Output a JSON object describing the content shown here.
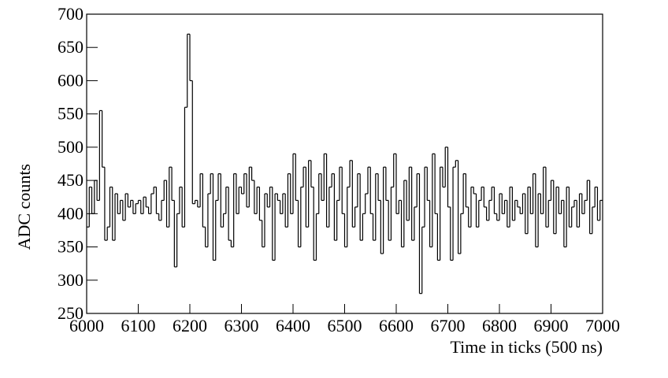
{
  "chart_data": {
    "type": "line",
    "drawstyle": "steps",
    "color": "#000000",
    "xlabel": "Time in ticks (500 ns)",
    "ylabel": "ADC counts",
    "xlim": [
      6000,
      7000
    ],
    "ylim": [
      250,
      700
    ],
    "xticks": [
      6000,
      6100,
      6200,
      6300,
      6400,
      6500,
      6600,
      6700,
      6800,
      6900,
      7000
    ],
    "yticks": [
      250,
      300,
      350,
      400,
      450,
      500,
      550,
      600,
      650,
      700
    ],
    "x": [
      6000,
      6005,
      6010,
      6015,
      6020,
      6025,
      6030,
      6035,
      6040,
      6045,
      6050,
      6055,
      6060,
      6065,
      6070,
      6075,
      6080,
      6085,
      6090,
      6095,
      6100,
      6105,
      6110,
      6115,
      6120,
      6125,
      6130,
      6135,
      6140,
      6145,
      6150,
      6155,
      6160,
      6165,
      6170,
      6175,
      6180,
      6185,
      6190,
      6195,
      6200,
      6205,
      6210,
      6215,
      6220,
      6225,
      6230,
      6235,
      6240,
      6245,
      6250,
      6255,
      6260,
      6265,
      6270,
      6275,
      6280,
      6285,
      6290,
      6295,
      6300,
      6305,
      6310,
      6315,
      6320,
      6325,
      6330,
      6335,
      6340,
      6345,
      6350,
      6355,
      6360,
      6365,
      6370,
      6375,
      6380,
      6385,
      6390,
      6395,
      6400,
      6405,
      6410,
      6415,
      6420,
      6425,
      6430,
      6435,
      6440,
      6445,
      6450,
      6455,
      6460,
      6465,
      6470,
      6475,
      6480,
      6485,
      6490,
      6495,
      6500,
      6505,
      6510,
      6515,
      6520,
      6525,
      6530,
      6535,
      6540,
      6545,
      6550,
      6555,
      6560,
      6565,
      6570,
      6575,
      6580,
      6585,
      6590,
      6595,
      6600,
      6605,
      6610,
      6615,
      6620,
      6625,
      6630,
      6635,
      6640,
      6645,
      6650,
      6655,
      6660,
      6665,
      6670,
      6675,
      6680,
      6685,
      6690,
      6695,
      6700,
      6705,
      6710,
      6715,
      6720,
      6725,
      6730,
      6735,
      6740,
      6745,
      6750,
      6755,
      6760,
      6765,
      6770,
      6775,
      6780,
      6785,
      6790,
      6795,
      6800,
      6805,
      6810,
      6815,
      6820,
      6825,
      6830,
      6835,
      6840,
      6845,
      6850,
      6855,
      6860,
      6865,
      6870,
      6875,
      6880,
      6885,
      6890,
      6895,
      6900,
      6905,
      6910,
      6915,
      6920,
      6925,
      6930,
      6935,
      6940,
      6945,
      6950,
      6955,
      6960,
      6965,
      6970,
      6975,
      6980,
      6985,
      6990,
      6995
    ],
    "values": [
      380,
      440,
      400,
      450,
      420,
      555,
      470,
      360,
      380,
      440,
      360,
      430,
      400,
      420,
      390,
      430,
      410,
      420,
      400,
      415,
      420,
      400,
      425,
      410,
      400,
      430,
      440,
      400,
      390,
      420,
      450,
      380,
      470,
      420,
      320,
      400,
      440,
      380,
      560,
      670,
      600,
      415,
      420,
      410,
      460,
      380,
      350,
      430,
      460,
      330,
      420,
      460,
      380,
      400,
      440,
      360,
      350,
      460,
      400,
      440,
      430,
      460,
      410,
      470,
      450,
      400,
      440,
      390,
      350,
      430,
      410,
      440,
      330,
      430,
      420,
      400,
      430,
      380,
      460,
      400,
      490,
      420,
      350,
      440,
      470,
      380,
      480,
      440,
      330,
      400,
      460,
      420,
      490,
      380,
      440,
      460,
      360,
      420,
      470,
      400,
      350,
      440,
      480,
      380,
      410,
      460,
      360,
      400,
      430,
      470,
      400,
      360,
      460,
      420,
      340,
      470,
      420,
      360,
      440,
      490,
      400,
      420,
      350,
      450,
      390,
      470,
      360,
      410,
      460,
      280,
      380,
      470,
      420,
      350,
      490,
      400,
      330,
      470,
      440,
      500,
      410,
      330,
      470,
      480,
      340,
      400,
      460,
      410,
      380,
      440,
      430,
      380,
      420,
      440,
      410,
      390,
      420,
      440,
      400,
      390,
      430,
      400,
      420,
      380,
      440,
      390,
      420,
      410,
      400,
      430,
      370,
      440,
      400,
      460,
      350,
      430,
      400,
      470,
      380,
      420,
      450,
      370,
      440,
      400,
      420,
      350,
      440,
      380,
      410,
      420,
      380,
      430,
      400,
      420,
      450,
      370,
      410,
      440,
      390,
      420
    ]
  }
}
